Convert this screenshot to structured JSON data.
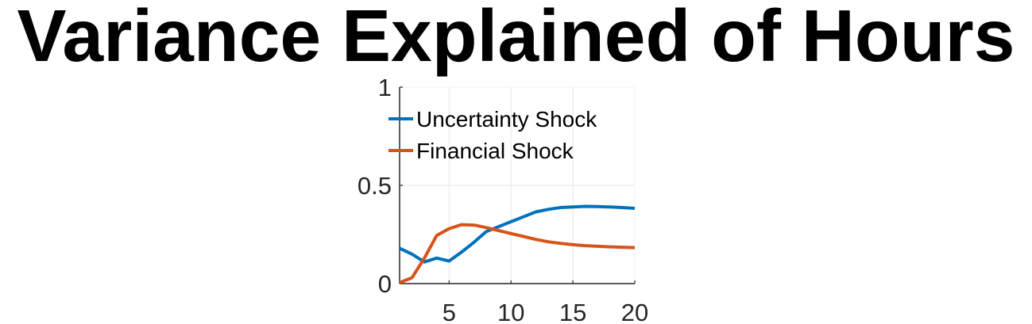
{
  "chart_data": {
    "type": "line",
    "title": "Variance Explained of Hours",
    "xlabel": "",
    "ylabel": "",
    "xlim": [
      1,
      20
    ],
    "ylim": [
      0,
      1
    ],
    "xticks": [
      5,
      10,
      15,
      20
    ],
    "yticks": [
      0,
      0.5,
      1
    ],
    "xtick_labels": [
      "5",
      "10",
      "15",
      "20"
    ],
    "ytick_labels": [
      "0",
      "0.5",
      "1"
    ],
    "grid": true,
    "legend_position": "top-right",
    "x": [
      1,
      2,
      3,
      4,
      5,
      6,
      7,
      8,
      9,
      10,
      11,
      12,
      13,
      14,
      15,
      16,
      17,
      18,
      19,
      20
    ],
    "series": [
      {
        "name": "Uncertainty Shock",
        "color": "#0072BD",
        "values": [
          0.18,
          0.15,
          0.11,
          0.13,
          0.115,
          0.16,
          0.21,
          0.265,
          0.29,
          0.315,
          0.34,
          0.365,
          0.378,
          0.387,
          0.39,
          0.393,
          0.392,
          0.39,
          0.387,
          0.383
        ]
      },
      {
        "name": "Financial Shock",
        "color": "#D95319",
        "values": [
          0.005,
          0.03,
          0.13,
          0.245,
          0.28,
          0.3,
          0.298,
          0.285,
          0.27,
          0.255,
          0.24,
          0.225,
          0.213,
          0.205,
          0.198,
          0.193,
          0.19,
          0.187,
          0.185,
          0.183
        ]
      }
    ]
  }
}
